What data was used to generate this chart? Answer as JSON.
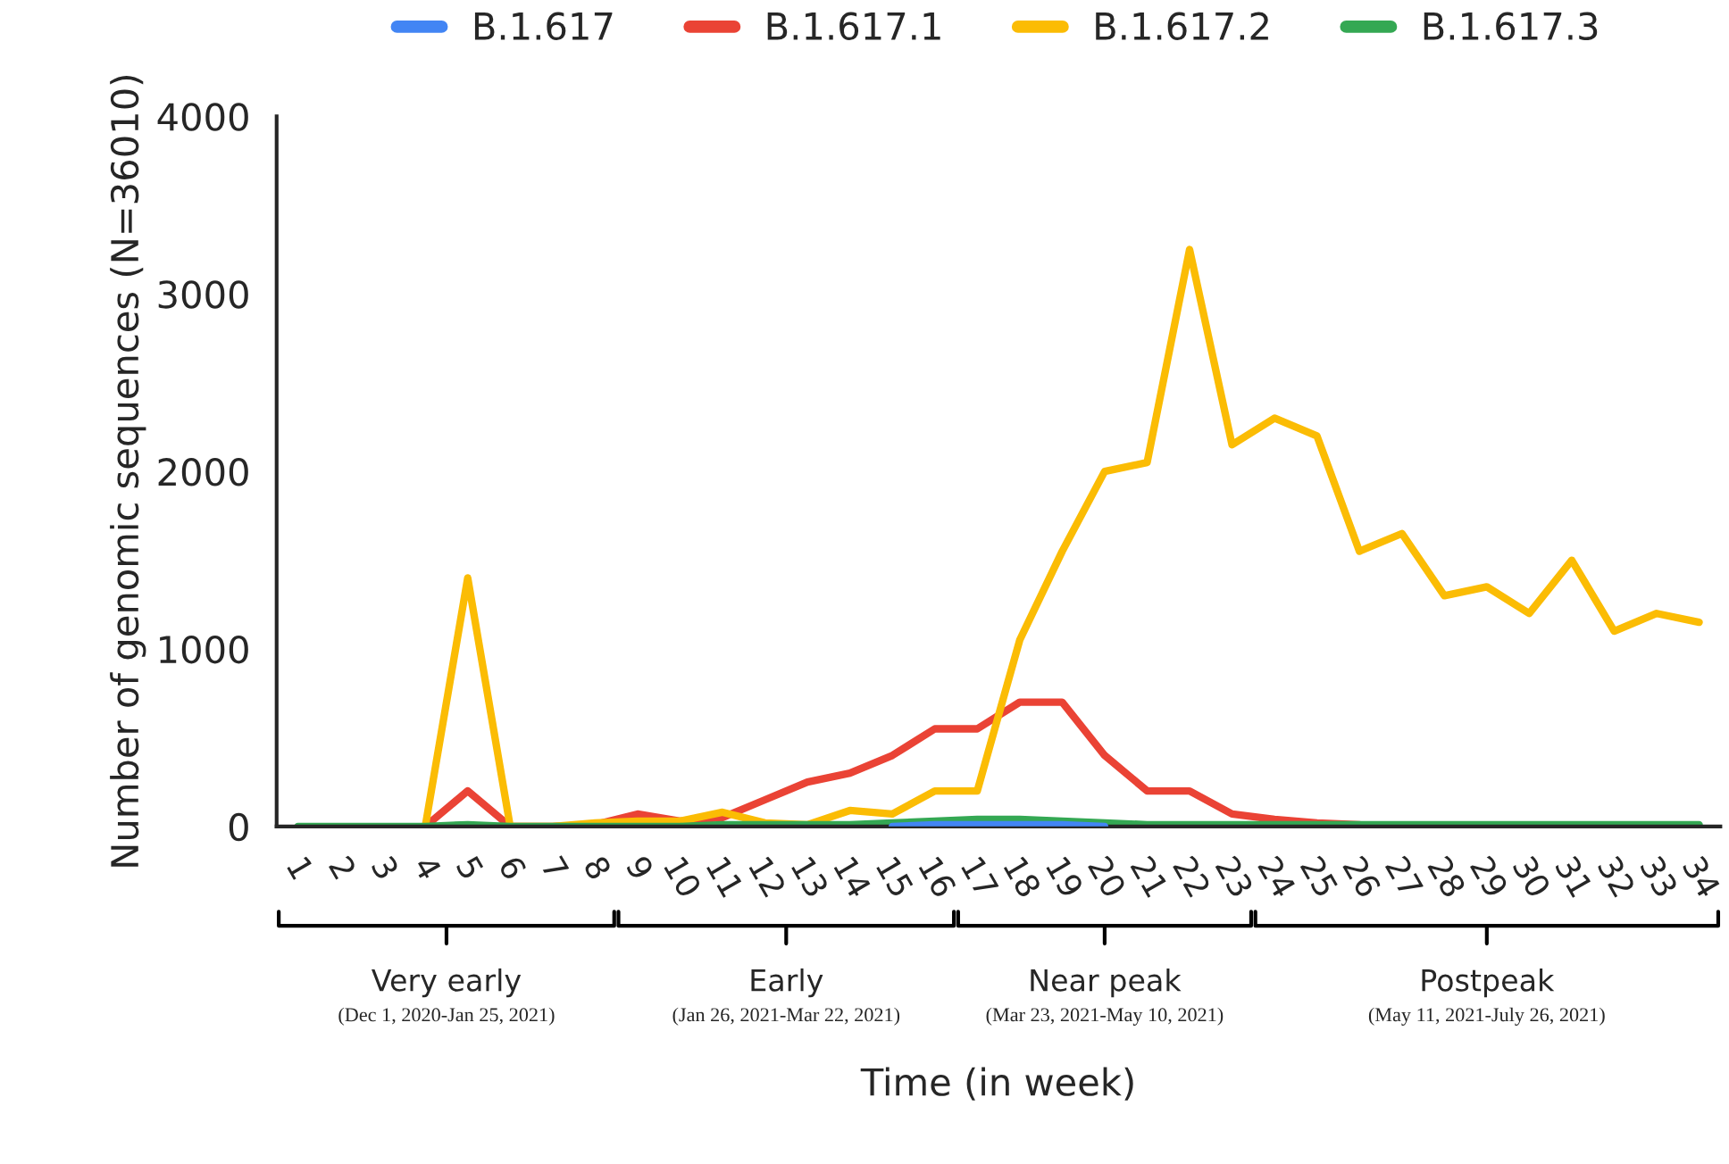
{
  "chart_data": {
    "type": "line",
    "xlabel": "Time (in week)",
    "ylabel": "Number of genomic sequences (N=36010)",
    "categories": [
      "1",
      "2",
      "3",
      "4",
      "5",
      "6",
      "7",
      "8",
      "9",
      "10",
      "11",
      "12",
      "13",
      "14",
      "15",
      "16",
      "17",
      "18",
      "19",
      "20",
      "21",
      "22",
      "23",
      "24",
      "25",
      "26",
      "27",
      "28",
      "29",
      "30",
      "31",
      "32",
      "33",
      "34"
    ],
    "series": [
      {
        "name": "B.1.617",
        "color": "#4285f4",
        "values": [
          null,
          null,
          null,
          null,
          null,
          null,
          null,
          null,
          null,
          null,
          null,
          null,
          null,
          null,
          0,
          10,
          10,
          10,
          10,
          0,
          null,
          null,
          null,
          null,
          null,
          null,
          null,
          null,
          null,
          null,
          null,
          null,
          null,
          null
        ]
      },
      {
        "name": "B.1.617.1",
        "color": "#ea4335",
        "values": [
          null,
          null,
          null,
          0,
          200,
          0,
          0,
          10,
          70,
          30,
          50,
          150,
          250,
          300,
          400,
          550,
          550,
          700,
          700,
          400,
          200,
          200,
          70,
          40,
          20,
          10,
          null,
          null,
          null,
          null,
          null,
          null,
          null,
          null
        ]
      },
      {
        "name": "B.1.617.2",
        "color": "#fbbc04",
        "values": [
          null,
          null,
          null,
          0,
          1400,
          0,
          0,
          20,
          30,
          30,
          80,
          20,
          10,
          90,
          70,
          200,
          200,
          1050,
          1550,
          2000,
          2050,
          3250,
          2150,
          2300,
          2200,
          1550,
          1650,
          1300,
          1350,
          1200,
          1500,
          1100,
          1200,
          1150
        ]
      },
      {
        "name": "B.1.617.3",
        "color": "#34a853",
        "values": [
          0,
          0,
          0,
          0,
          10,
          0,
          0,
          0,
          0,
          0,
          10,
          10,
          10,
          10,
          20,
          30,
          40,
          40,
          30,
          20,
          10,
          10,
          10,
          10,
          10,
          10,
          10,
          10,
          10,
          10,
          10,
          10,
          10,
          10
        ]
      }
    ],
    "ylim": [
      0,
      4000
    ],
    "yticks": [
      0,
      1000,
      2000,
      3000,
      4000
    ],
    "grid": false,
    "legend": "top",
    "marker": "none",
    "line_style": "solid",
    "annotations": [
      "Very early",
      "(Dec 1, 2020-Jan 25, 2021)",
      "Early",
      "(Jan 26, 2021-Mar 22, 2021)",
      "Near peak",
      "(Mar 23, 2021-May 10, 2021)",
      "Postpeak",
      "(May 11, 2021-July 26, 2021)"
    ]
  }
}
